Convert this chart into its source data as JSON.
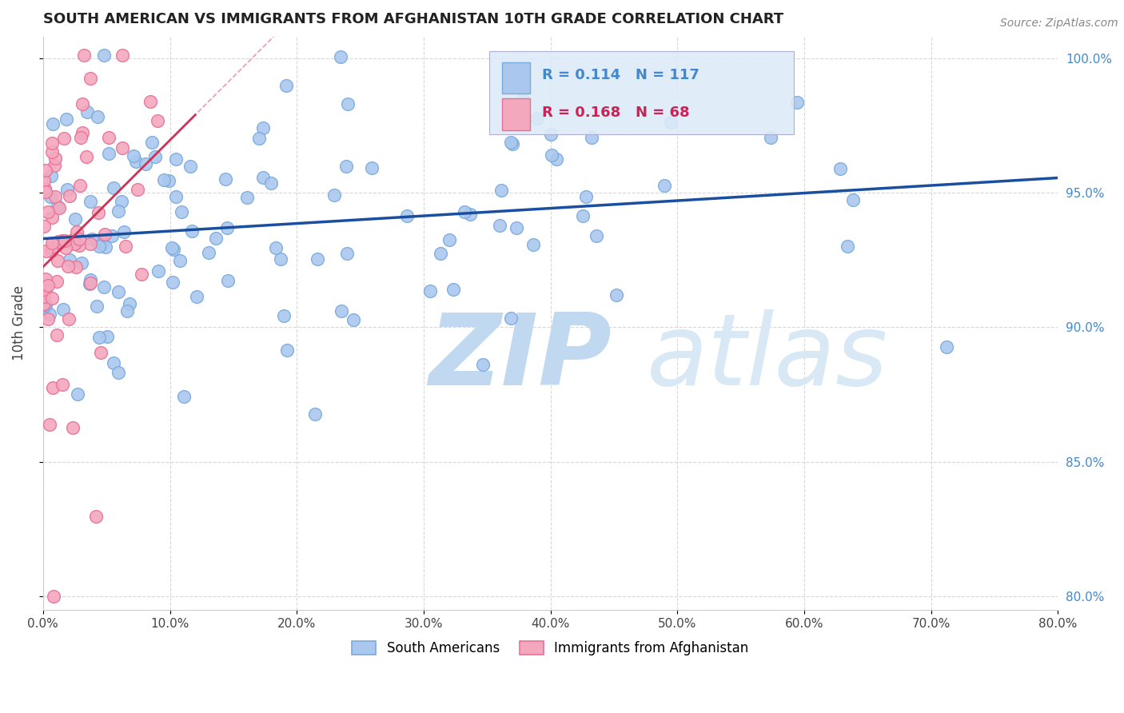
{
  "title": "SOUTH AMERICAN VS IMMIGRANTS FROM AFGHANISTAN 10TH GRADE CORRELATION CHART",
  "source": "Source: ZipAtlas.com",
  "ylabel": "10th Grade",
  "xlim": [
    0.0,
    0.8
  ],
  "ylim": [
    0.795,
    1.008
  ],
  "xticks": [
    0.0,
    0.1,
    0.2,
    0.3,
    0.4,
    0.5,
    0.6,
    0.7,
    0.8
  ],
  "xticklabels": [
    "0.0%",
    "10.0%",
    "20.0%",
    "30.0%",
    "40.0%",
    "50.0%",
    "60.0%",
    "70.0%",
    "80.0%"
  ],
  "yticks": [
    0.8,
    0.85,
    0.9,
    0.95,
    1.0
  ],
  "yticklabels": [
    "80.0%",
    "85.0%",
    "90.0%",
    "95.0%",
    "100.0%"
  ],
  "blue_color": "#aac8ee",
  "pink_color": "#f4a8be",
  "blue_edge": "#7aaade",
  "pink_edge": "#e87098",
  "trend_blue": "#1a4fa0",
  "trend_pink": "#cc3355",
  "trend_pink_dash": "#e07090",
  "R_blue": 0.114,
  "N_blue": 117,
  "R_pink": 0.168,
  "N_pink": 68,
  "watermark_zip": "ZIP",
  "watermark_atlas": "atlas",
  "watermark_color": "#c0d8f0",
  "legend_label_blue": "South Americans",
  "legend_label_pink": "Immigrants from Afghanistan",
  "marker_size": 130,
  "grid_color": "#d8d8d8",
  "yaxis_color": "#4488cc"
}
